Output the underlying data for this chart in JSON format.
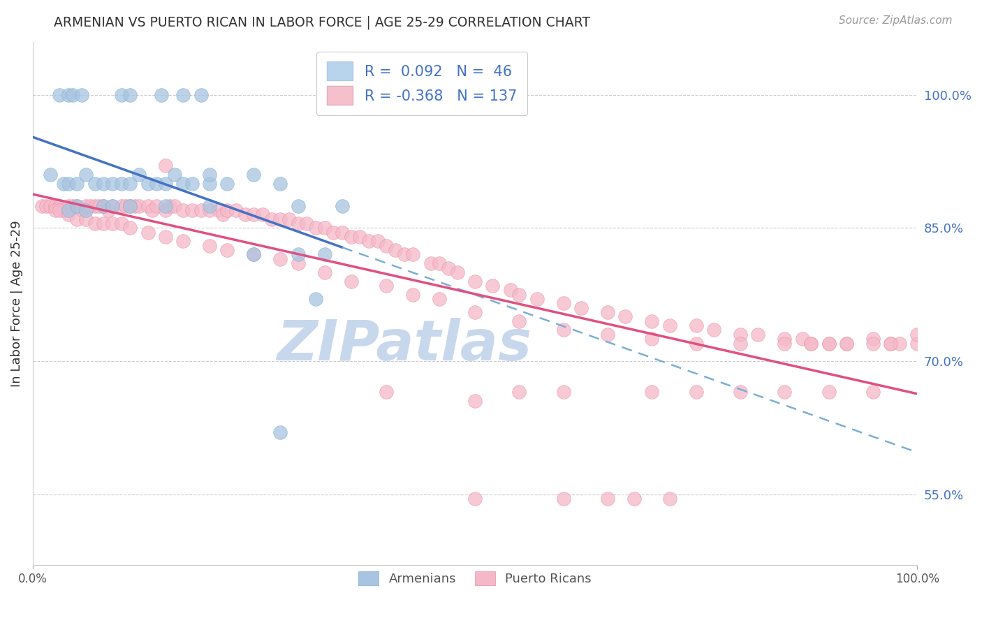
{
  "title": "ARMENIAN VS PUERTO RICAN IN LABOR FORCE | AGE 25-29 CORRELATION CHART",
  "source_text": "Source: ZipAtlas.com",
  "ylabel": "In Labor Force | Age 25-29",
  "armenian_R": 0.092,
  "armenian_N": 46,
  "puerto_rican_R": -0.368,
  "puerto_rican_N": 137,
  "armenian_color": "#a8c4e0",
  "armenian_edge_color": "#7aafd4",
  "puerto_rican_color": "#f5b8c8",
  "puerto_rican_edge_color": "#e890a8",
  "armenian_line_color": "#4472c4",
  "armenian_dash_color": "#7aafd4",
  "puerto_rican_line_color": "#e05080",
  "legend_box_color_armenian": "#b8d4ec",
  "legend_box_color_puerto": "#f5c0cc",
  "watermark_color": "#c8d8ec",
  "background_color": "#ffffff",
  "right_y_ticks": [
    0.55,
    0.7,
    0.85,
    1.0
  ],
  "right_y_tick_labels": [
    "55.0%",
    "70.0%",
    "85.0%",
    "100.0%"
  ],
  "xlim": [
    0.0,
    1.0
  ],
  "ylim": [
    0.47,
    1.06
  ],
  "armenian_line_x_solid_end": 0.35,
  "armenian_scatter_x": [
    0.03,
    0.04,
    0.045,
    0.055,
    0.1,
    0.11,
    0.145,
    0.17,
    0.19,
    0.02,
    0.035,
    0.04,
    0.05,
    0.06,
    0.07,
    0.08,
    0.09,
    0.1,
    0.11,
    0.12,
    0.13,
    0.14,
    0.15,
    0.16,
    0.17,
    0.18,
    0.2,
    0.22,
    0.25,
    0.28,
    0.04,
    0.05,
    0.06,
    0.08,
    0.09,
    0.11,
    0.15,
    0.2,
    0.3,
    0.35,
    0.25,
    0.3,
    0.33,
    0.32,
    0.28,
    0.2
  ],
  "armenian_scatter_y": [
    1.0,
    1.0,
    1.0,
    1.0,
    1.0,
    1.0,
    1.0,
    1.0,
    1.0,
    0.91,
    0.9,
    0.9,
    0.9,
    0.91,
    0.9,
    0.9,
    0.9,
    0.9,
    0.9,
    0.91,
    0.9,
    0.9,
    0.9,
    0.91,
    0.9,
    0.9,
    0.9,
    0.9,
    0.91,
    0.9,
    0.87,
    0.875,
    0.87,
    0.875,
    0.875,
    0.875,
    0.875,
    0.875,
    0.875,
    0.875,
    0.82,
    0.82,
    0.82,
    0.77,
    0.62,
    0.91
  ],
  "puerto_rican_scatter_x": [
    0.01,
    0.015,
    0.02,
    0.025,
    0.03,
    0.035,
    0.04,
    0.045,
    0.05,
    0.055,
    0.06,
    0.065,
    0.07,
    0.075,
    0.08,
    0.085,
    0.09,
    0.1,
    0.105,
    0.11,
    0.115,
    0.12,
    0.13,
    0.135,
    0.14,
    0.15,
    0.155,
    0.16,
    0.17,
    0.18,
    0.19,
    0.2,
    0.21,
    0.215,
    0.22,
    0.23,
    0.24,
    0.25,
    0.26,
    0.27,
    0.28,
    0.29,
    0.3,
    0.31,
    0.32,
    0.33,
    0.34,
    0.35,
    0.36,
    0.37,
    0.38,
    0.39,
    0.4,
    0.41,
    0.42,
    0.43,
    0.45,
    0.46,
    0.47,
    0.48,
    0.5,
    0.52,
    0.54,
    0.55,
    0.57,
    0.6,
    0.62,
    0.65,
    0.67,
    0.7,
    0.72,
    0.75,
    0.77,
    0.8,
    0.82,
    0.85,
    0.87,
    0.88,
    0.9,
    0.92,
    0.95,
    0.97,
    0.98,
    1.0,
    0.025,
    0.03,
    0.04,
    0.05,
    0.06,
    0.07,
    0.08,
    0.09,
    0.1,
    0.11,
    0.13,
    0.15,
    0.17,
    0.2,
    0.22,
    0.25,
    0.28,
    0.3,
    0.33,
    0.36,
    0.4,
    0.43,
    0.46,
    0.5,
    0.55,
    0.6,
    0.65,
    0.7,
    0.75,
    0.8,
    0.85,
    0.88,
    0.9,
    0.92,
    0.95,
    0.97,
    1.0,
    0.4,
    0.5,
    0.55,
    0.6,
    0.7,
    0.75,
    0.8,
    0.85,
    0.9,
    0.95,
    0.5,
    0.6,
    0.65,
    0.68,
    0.72,
    0.15
  ],
  "puerto_rican_scatter_y": [
    0.875,
    0.875,
    0.875,
    0.875,
    0.875,
    0.87,
    0.875,
    0.875,
    0.875,
    0.87,
    0.875,
    0.875,
    0.875,
    0.875,
    0.875,
    0.87,
    0.875,
    0.875,
    0.875,
    0.875,
    0.875,
    0.875,
    0.875,
    0.87,
    0.875,
    0.87,
    0.875,
    0.875,
    0.87,
    0.87,
    0.87,
    0.87,
    0.87,
    0.865,
    0.87,
    0.87,
    0.865,
    0.865,
    0.865,
    0.86,
    0.86,
    0.86,
    0.855,
    0.855,
    0.85,
    0.85,
    0.845,
    0.845,
    0.84,
    0.84,
    0.835,
    0.835,
    0.83,
    0.825,
    0.82,
    0.82,
    0.81,
    0.81,
    0.805,
    0.8,
    0.79,
    0.785,
    0.78,
    0.775,
    0.77,
    0.765,
    0.76,
    0.755,
    0.75,
    0.745,
    0.74,
    0.74,
    0.735,
    0.73,
    0.73,
    0.725,
    0.725,
    0.72,
    0.72,
    0.72,
    0.725,
    0.72,
    0.72,
    0.72,
    0.87,
    0.87,
    0.865,
    0.86,
    0.86,
    0.855,
    0.855,
    0.855,
    0.855,
    0.85,
    0.845,
    0.84,
    0.835,
    0.83,
    0.825,
    0.82,
    0.815,
    0.81,
    0.8,
    0.79,
    0.785,
    0.775,
    0.77,
    0.755,
    0.745,
    0.735,
    0.73,
    0.725,
    0.72,
    0.72,
    0.72,
    0.72,
    0.72,
    0.72,
    0.72,
    0.72,
    0.73,
    0.665,
    0.655,
    0.665,
    0.665,
    0.665,
    0.665,
    0.665,
    0.665,
    0.665,
    0.665,
    0.545,
    0.545,
    0.545,
    0.545,
    0.545,
    0.92
  ]
}
